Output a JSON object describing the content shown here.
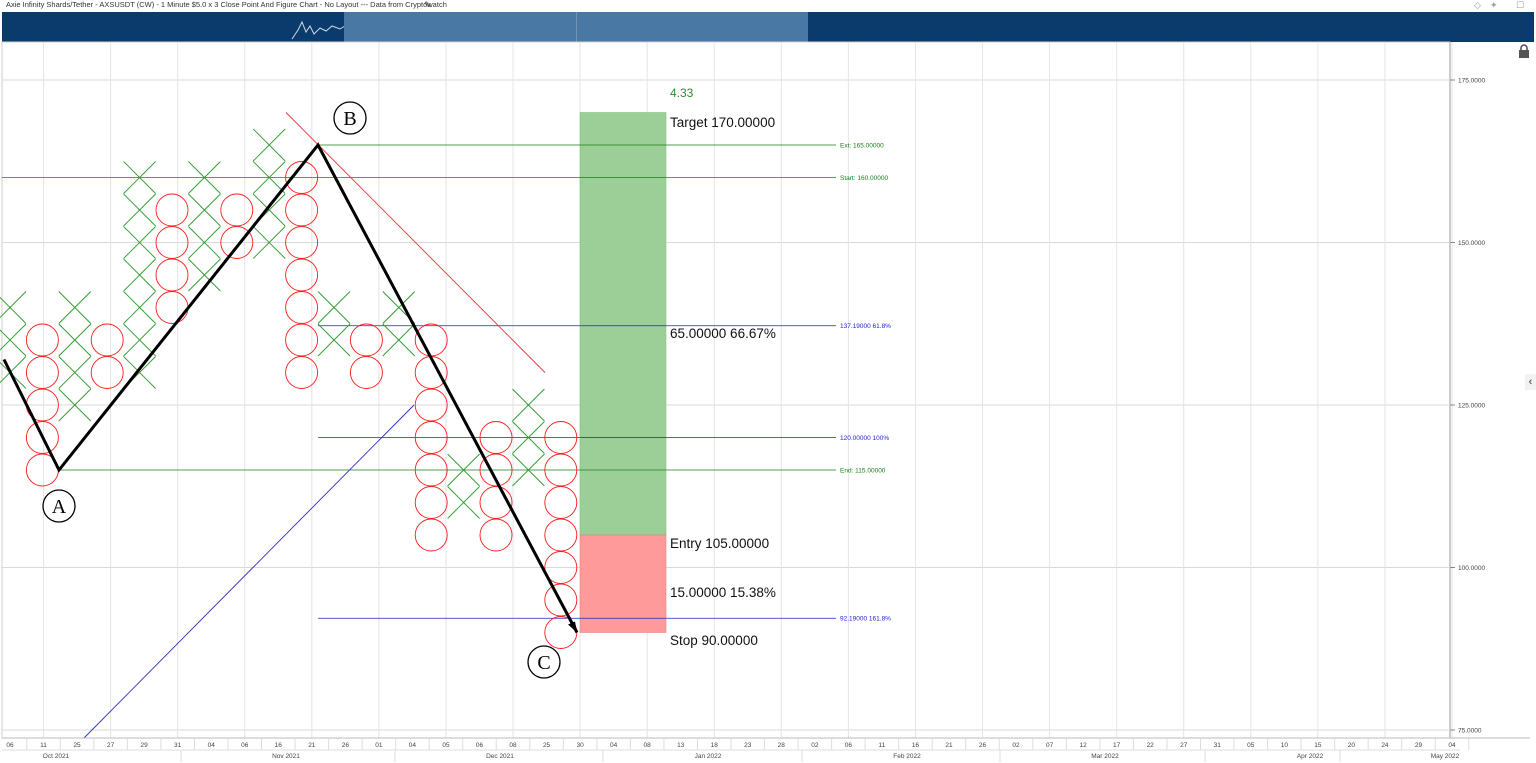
{
  "title": "Axie Infinity Shards/Tether - AXSUSDT (CW) - 1 Minute $5.0 x 3 Close Point And Figure Chart - No Layout --- Data from Cryptowatch",
  "icons": {
    "edit": "pencil-icon",
    "window_controls": [
      "diamond-icon",
      "pin-icon",
      "maximize-icon"
    ],
    "lock": "lock-icon",
    "collapse": "chevron-left-icon"
  },
  "colors": {
    "x_marks": "#2e9a2e",
    "o_marks": "#ff1a1a",
    "navigator": "#0b3a6d",
    "navigator_window": "#4a78a4",
    "green_lines": "#1a7f1a",
    "blue_lines": "#2222cc",
    "target_zone": "#9ccf98",
    "stop_zone": "#ff9a9a"
  },
  "chart_data": {
    "type": "point-and-figure",
    "box_size": 5.0,
    "reversal": 3,
    "ylim": [
      75,
      180
    ],
    "y_ticks": [
      "175.0000",
      "150.0000",
      "125.0000",
      "100.0000",
      "75.0000"
    ],
    "x_ticks": [
      "06",
      "11",
      "25",
      "27",
      "29",
      "31",
      "04",
      "06",
      "16",
      "21",
      "26",
      "01",
      "04",
      "05",
      "06",
      "08",
      "25",
      "30",
      "04",
      "08",
      "13",
      "18",
      "23",
      "28",
      "02",
      "06",
      "11",
      "16",
      "21",
      "26",
      "02",
      "07",
      "12",
      "17",
      "22",
      "27",
      "31",
      "05",
      "10",
      "15",
      "20",
      "24",
      "29",
      "04"
    ],
    "month_labels": [
      "Oct 2021",
      "Nov 2021",
      "Dec 2021",
      "Jan 2022",
      "Feb 2022",
      "Mar 2022",
      "Apr 2022",
      "May 2022"
    ],
    "columns": [
      {
        "type": "X",
        "low": 130,
        "high": 140
      },
      {
        "type": "O",
        "low": 115,
        "high": 135
      },
      {
        "type": "X",
        "low": 125,
        "high": 140
      },
      {
        "type": "O",
        "low": 130,
        "high": 135
      },
      {
        "type": "X",
        "low": 130,
        "high": 160
      },
      {
        "type": "O",
        "low": 140,
        "high": 155
      },
      {
        "type": "X",
        "low": 145,
        "high": 160
      },
      {
        "type": "O",
        "low": 150,
        "high": 155
      },
      {
        "type": "X",
        "low": 150,
        "high": 165
      },
      {
        "type": "O",
        "low": 130,
        "high": 160
      },
      {
        "type": "X",
        "low": 135,
        "high": 140
      },
      {
        "type": "O",
        "low": 130,
        "high": 135
      },
      {
        "type": "X",
        "low": 135,
        "high": 140
      },
      {
        "type": "O",
        "low": 105,
        "high": 135
      },
      {
        "type": "X",
        "low": 110,
        "high": 115
      },
      {
        "type": "O",
        "low": 105,
        "high": 120
      },
      {
        "type": "X",
        "low": 115,
        "high": 125
      },
      {
        "type": "O",
        "low": 90,
        "high": 120
      }
    ],
    "wave_points": [
      {
        "label": "A",
        "price": 115
      },
      {
        "label": "B",
        "price": 165
      },
      {
        "label": "C",
        "price": 90
      }
    ],
    "levels": [
      {
        "label": "Ext: 165.00000",
        "price": 165,
        "color": "green"
      },
      {
        "label": "Start: 160.00000",
        "price": 160,
        "color": "green"
      },
      {
        "label": "137.19000    61.8%",
        "price": 137.19,
        "color": "blue"
      },
      {
        "label": "120.00000     100%",
        "price": 120,
        "color": "blue"
      },
      {
        "label": "End: 115.00000",
        "price": 115,
        "color": "green"
      },
      {
        "label": "92.19000    161.8%",
        "price": 92.19,
        "color": "blue"
      }
    ],
    "risk_reward": {
      "ratio": "4.33",
      "target": "Target   170.00000",
      "reward": "65.00000   66.67%",
      "entry": "Entry   105.00000",
      "risk": "15.00000   15.38%",
      "stop": "Stop   90.00000",
      "target_price": 170,
      "entry_price": 105,
      "stop_price": 90
    }
  }
}
